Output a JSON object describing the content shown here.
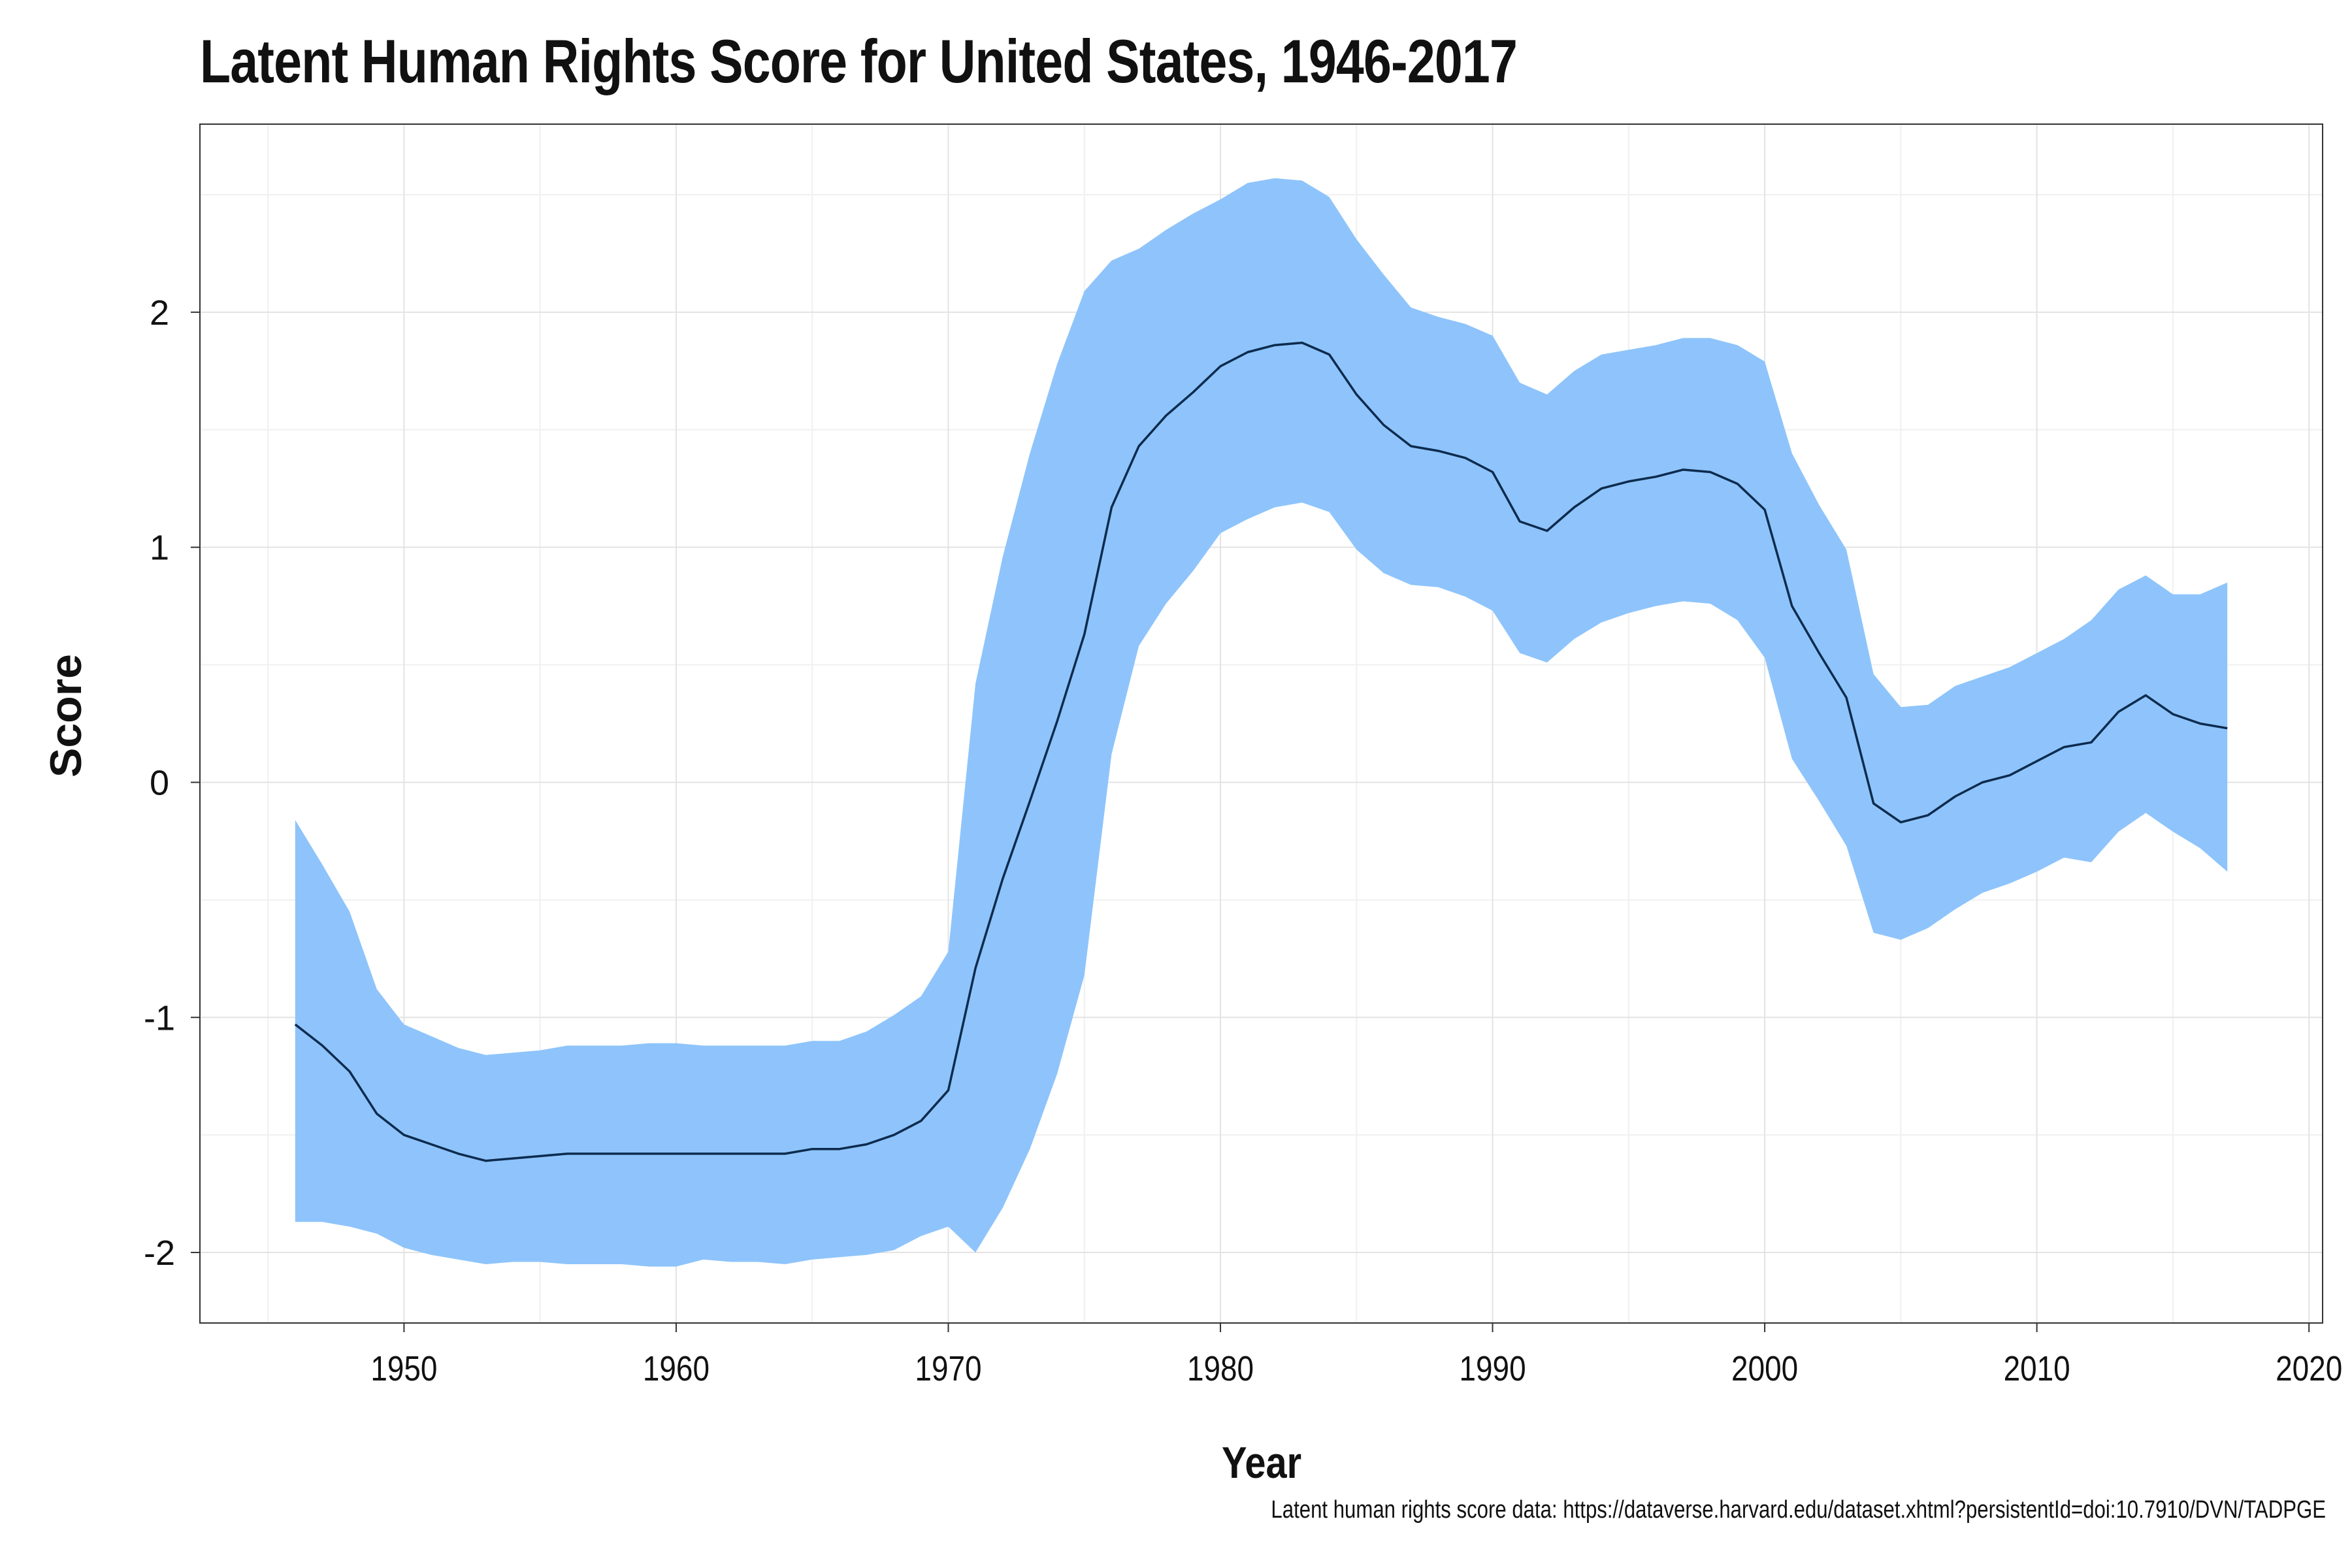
{
  "chart_data": {
    "type": "line",
    "title": "Latent Human Rights Score for United States, 1946-2017",
    "xlabel": "Year",
    "ylabel": "Score",
    "caption": "Latent human rights score data: https://dataverse.harvard.edu/dataset.xhtml?persistentId=doi:10.7910/DVN/TADPGE",
    "xlim": [
      1942.5,
      2020.5
    ],
    "ylim": [
      -2.3,
      2.8
    ],
    "x_ticks": [
      1950,
      1960,
      1970,
      1980,
      1990,
      2000,
      2010,
      2020
    ],
    "y_ticks": [
      -2,
      -1,
      0,
      1,
      2
    ],
    "grid": true,
    "colors": {
      "band": "#8EC4FB",
      "line": "#0D2B4E",
      "grid": "#e3e3e3",
      "panel_border": "#333333"
    },
    "series": [
      {
        "x": [
          1946,
          1947,
          1948,
          1949,
          1950,
          1951,
          1952,
          1953,
          1954,
          1955,
          1956,
          1957,
          1958,
          1959,
          1960,
          1961,
          1962,
          1963,
          1964,
          1965,
          1966,
          1967,
          1968,
          1969,
          1970,
          1971,
          1972,
          1973,
          1974,
          1975,
          1976,
          1977,
          1978,
          1979,
          1980,
          1981,
          1982,
          1983,
          1984,
          1985,
          1986,
          1987,
          1988,
          1989,
          1990,
          1991,
          1992,
          1993,
          1994,
          1995,
          1996,
          1997,
          1998,
          1999,
          2000,
          2001,
          2002,
          2003,
          2004,
          2005,
          2006,
          2007,
          2008,
          2009,
          2010,
          2011,
          2012,
          2013,
          2014,
          2015,
          2016,
          2017
        ],
        "y": [
          -1.03,
          -1.12,
          -1.23,
          -1.41,
          -1.5,
          -1.54,
          -1.58,
          -1.61,
          -1.6,
          -1.59,
          -1.58,
          -1.58,
          -1.58,
          -1.58,
          -1.58,
          -1.58,
          -1.58,
          -1.58,
          -1.58,
          -1.56,
          -1.56,
          -1.54,
          -1.5,
          -1.44,
          -1.31,
          -0.79,
          -0.41,
          -0.08,
          0.26,
          0.63,
          1.17,
          1.43,
          1.56,
          1.66,
          1.77,
          1.83,
          1.86,
          1.87,
          1.82,
          1.65,
          1.52,
          1.43,
          1.41,
          1.38,
          1.32,
          1.11,
          1.07,
          1.17,
          1.25,
          1.28,
          1.3,
          1.33,
          1.32,
          1.27,
          1.16,
          0.75,
          0.55,
          0.36,
          -0.09,
          -0.17,
          -0.14,
          -0.06,
          0.0,
          0.03,
          0.09,
          0.15,
          0.17,
          0.3,
          0.37,
          0.29,
          0.25,
          0.23
        ],
        "lower": [
          -1.87,
          -1.87,
          -1.89,
          -1.92,
          -1.98,
          -2.01,
          -2.03,
          -2.05,
          -2.04,
          -2.04,
          -2.05,
          -2.05,
          -2.05,
          -2.06,
          -2.06,
          -2.03,
          -2.04,
          -2.04,
          -2.05,
          -2.03,
          -2.02,
          -2.01,
          -1.99,
          -1.93,
          -1.89,
          -2.0,
          -1.81,
          -1.56,
          -1.24,
          -0.82,
          0.12,
          0.58,
          0.76,
          0.9,
          1.06,
          1.12,
          1.17,
          1.19,
          1.15,
          0.99,
          0.89,
          0.84,
          0.83,
          0.79,
          0.73,
          0.55,
          0.51,
          0.61,
          0.68,
          0.72,
          0.75,
          0.77,
          0.76,
          0.69,
          0.53,
          0.1,
          -0.08,
          -0.27,
          -0.64,
          -0.67,
          -0.62,
          -0.54,
          -0.47,
          -0.43,
          -0.38,
          -0.32,
          -0.34,
          -0.21,
          -0.13,
          -0.21,
          -0.28,
          -0.38
        ],
        "upper": [
          -0.16,
          -0.35,
          -0.55,
          -0.88,
          -1.03,
          -1.08,
          -1.13,
          -1.16,
          -1.15,
          -1.14,
          -1.12,
          -1.12,
          -1.12,
          -1.11,
          -1.11,
          -1.12,
          -1.12,
          -1.12,
          -1.12,
          -1.1,
          -1.1,
          -1.06,
          -0.99,
          -0.91,
          -0.72,
          0.42,
          0.96,
          1.4,
          1.78,
          2.09,
          2.22,
          2.27,
          2.35,
          2.42,
          2.48,
          2.55,
          2.57,
          2.56,
          2.49,
          2.31,
          2.16,
          2.02,
          1.98,
          1.95,
          1.9,
          1.7,
          1.65,
          1.75,
          1.82,
          1.84,
          1.86,
          1.89,
          1.89,
          1.86,
          1.79,
          1.4,
          1.18,
          0.99,
          0.46,
          0.32,
          0.33,
          0.41,
          0.45,
          0.49,
          0.55,
          0.61,
          0.69,
          0.82,
          0.88,
          0.8,
          0.8,
          0.85
        ]
      }
    ]
  }
}
